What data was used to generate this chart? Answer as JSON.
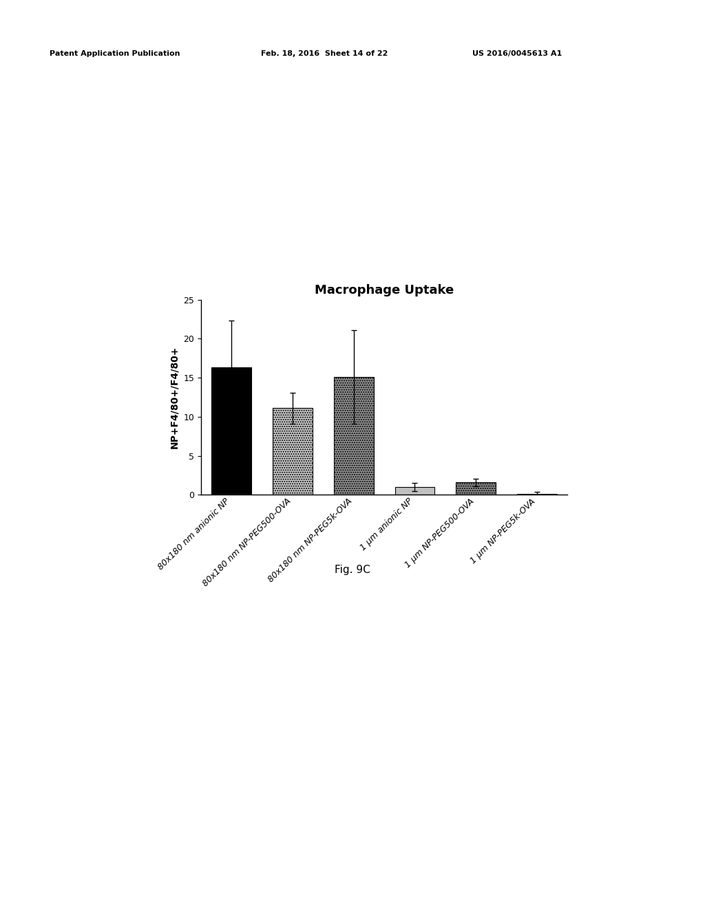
{
  "title": "Macrophage Uptake",
  "ylabel": "NP+F4/80+/F4/80+",
  "categories": [
    "80x180 nm anionic NP",
    "80x180 nm NP-PEG500-OVA",
    "80x180 nm NP-PEG5k-OVA",
    "1 μm anionic NP",
    "1 μm NP-PEG500-OVA",
    "1 μm NP-PEG5k-OVA"
  ],
  "values": [
    16.3,
    11.1,
    15.1,
    1.0,
    1.6,
    0.1
  ],
  "errors": [
    6.0,
    2.0,
    6.0,
    0.5,
    0.5,
    0.3
  ],
  "bar_colors": [
    "#000000",
    "#c8c8c8",
    "#909090",
    "#c0c0c0",
    "#888888",
    "#d0d0d0"
  ],
  "bar_hatches": [
    null,
    ".....",
    ".....",
    null,
    ".....",
    "....."
  ],
  "ylim": [
    0,
    25
  ],
  "yticks": [
    0,
    5,
    10,
    15,
    20,
    25
  ],
  "title_fontsize": 13,
  "label_fontsize": 10,
  "tick_fontsize": 9,
  "fig_caption": "Fig. 9C",
  "header_left": "Patent Application Publication",
  "header_mid": "Feb. 18, 2016  Sheet 14 of 22",
  "header_right": "US 2016/0045613 A1",
  "background_color": "#ffffff"
}
